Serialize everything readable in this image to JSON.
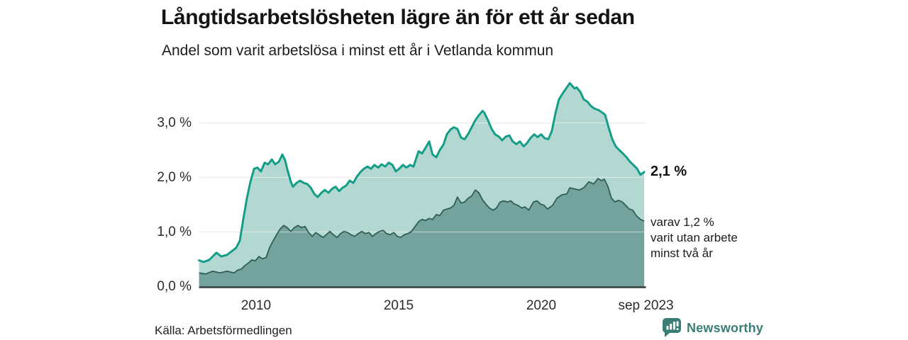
{
  "header": {
    "title": "Långtidsarbetslösheten lägre än för ett år sedan",
    "subtitle": "Andel som varit arbetslösa i minst ett år i Vetlanda kommun"
  },
  "chart_data": {
    "type": "area",
    "title": "Långtidsarbetslösheten lägre än för ett år sedan",
    "subtitle": "Andel som varit arbetslösa i minst ett år i Vetlanda kommun",
    "unit": "%",
    "grid": true,
    "legend_position": "end-of-line-annotations",
    "xaxis": {
      "range": [
        2008.0,
        2023.67
      ],
      "ticks": [
        {
          "label": "2010",
          "year": 2010
        },
        {
          "label": "2015",
          "year": 2015
        },
        {
          "label": "2020",
          "year": 2020
        },
        {
          "label": "sep 2023",
          "year": 2023.67
        }
      ]
    },
    "yaxis": {
      "range": [
        0,
        3.9
      ],
      "gridlines": [
        1,
        2,
        3
      ],
      "ticks": [
        {
          "label": "0,0 %",
          "value": 0
        },
        {
          "label": "1,0 %",
          "value": 1
        },
        {
          "label": "2,0 %",
          "value": 2
        },
        {
          "label": "3,0 %",
          "value": 3
        }
      ]
    },
    "annotations": {
      "end_label_light": "2,1 %",
      "dark_lines": [
        "varav 1,2 %",
        "varit utan arbete",
        "minst två år"
      ]
    },
    "series": [
      {
        "name": "Andel arbetslösa minst ett år",
        "end_value_label": "2,1 %",
        "line_color": "#149e88",
        "fill_color": "#b3d8d2",
        "points": [
          [
            2008.0,
            0.48
          ],
          [
            2008.16,
            0.45
          ],
          [
            2008.36,
            0.49
          ],
          [
            2008.61,
            0.62
          ],
          [
            2008.78,
            0.55
          ],
          [
            2008.98,
            0.58
          ],
          [
            2009.18,
            0.66
          ],
          [
            2009.3,
            0.71
          ],
          [
            2009.43,
            0.84
          ],
          [
            2009.55,
            1.23
          ],
          [
            2009.68,
            1.62
          ],
          [
            2009.8,
            1.92
          ],
          [
            2009.93,
            2.16
          ],
          [
            2010.05,
            2.18
          ],
          [
            2010.17,
            2.11
          ],
          [
            2010.3,
            2.27
          ],
          [
            2010.42,
            2.24
          ],
          [
            2010.55,
            2.33
          ],
          [
            2010.67,
            2.24
          ],
          [
            2010.8,
            2.29
          ],
          [
            2010.92,
            2.42
          ],
          [
            2011.02,
            2.31
          ],
          [
            2011.09,
            2.16
          ],
          [
            2011.22,
            1.92
          ],
          [
            2011.29,
            1.83
          ],
          [
            2011.42,
            1.9
          ],
          [
            2011.54,
            1.94
          ],
          [
            2011.67,
            1.9
          ],
          [
            2011.79,
            1.88
          ],
          [
            2011.92,
            1.81
          ],
          [
            2012.04,
            1.7
          ],
          [
            2012.16,
            1.64
          ],
          [
            2012.29,
            1.72
          ],
          [
            2012.41,
            1.77
          ],
          [
            2012.54,
            1.72
          ],
          [
            2012.66,
            1.79
          ],
          [
            2012.79,
            1.83
          ],
          [
            2012.91,
            1.75
          ],
          [
            2013.03,
            1.81
          ],
          [
            2013.16,
            1.85
          ],
          [
            2013.28,
            1.94
          ],
          [
            2013.41,
            1.9
          ],
          [
            2013.53,
            2.01
          ],
          [
            2013.66,
            2.1
          ],
          [
            2013.78,
            2.16
          ],
          [
            2013.91,
            2.2
          ],
          [
            2014.03,
            2.16
          ],
          [
            2014.15,
            2.23
          ],
          [
            2014.28,
            2.18
          ],
          [
            2014.4,
            2.24
          ],
          [
            2014.53,
            2.2
          ],
          [
            2014.65,
            2.27
          ],
          [
            2014.78,
            2.23
          ],
          [
            2014.9,
            2.11
          ],
          [
            2015.02,
            2.16
          ],
          [
            2015.15,
            2.23
          ],
          [
            2015.27,
            2.18
          ],
          [
            2015.4,
            2.23
          ],
          [
            2015.52,
            2.2
          ],
          [
            2015.7,
            2.48
          ],
          [
            2015.82,
            2.44
          ],
          [
            2015.95,
            2.55
          ],
          [
            2016.07,
            2.66
          ],
          [
            2016.19,
            2.42
          ],
          [
            2016.32,
            2.37
          ],
          [
            2016.44,
            2.5
          ],
          [
            2016.57,
            2.6
          ],
          [
            2016.69,
            2.79
          ],
          [
            2016.82,
            2.88
          ],
          [
            2016.94,
            2.92
          ],
          [
            2017.06,
            2.89
          ],
          [
            2017.19,
            2.73
          ],
          [
            2017.31,
            2.7
          ],
          [
            2017.44,
            2.8
          ],
          [
            2017.56,
            2.92
          ],
          [
            2017.69,
            3.05
          ],
          [
            2017.81,
            3.14
          ],
          [
            2017.94,
            3.22
          ],
          [
            2018.01,
            3.18
          ],
          [
            2018.13,
            3.05
          ],
          [
            2018.26,
            2.89
          ],
          [
            2018.38,
            2.79
          ],
          [
            2018.51,
            2.75
          ],
          [
            2018.63,
            2.68
          ],
          [
            2018.76,
            2.75
          ],
          [
            2018.88,
            2.77
          ],
          [
            2019.0,
            2.66
          ],
          [
            2019.13,
            2.61
          ],
          [
            2019.25,
            2.66
          ],
          [
            2019.38,
            2.57
          ],
          [
            2019.5,
            2.63
          ],
          [
            2019.62,
            2.72
          ],
          [
            2019.75,
            2.79
          ],
          [
            2019.87,
            2.74
          ],
          [
            2020.0,
            2.79
          ],
          [
            2020.12,
            2.72
          ],
          [
            2020.25,
            2.7
          ],
          [
            2020.37,
            2.85
          ],
          [
            2020.5,
            3.18
          ],
          [
            2020.62,
            3.43
          ],
          [
            2020.75,
            3.54
          ],
          [
            2020.87,
            3.63
          ],
          [
            2021.0,
            3.73
          ],
          [
            2021.1,
            3.67
          ],
          [
            2021.17,
            3.63
          ],
          [
            2021.24,
            3.65
          ],
          [
            2021.37,
            3.57
          ],
          [
            2021.49,
            3.43
          ],
          [
            2021.62,
            3.39
          ],
          [
            2021.74,
            3.31
          ],
          [
            2021.87,
            3.26
          ],
          [
            2021.99,
            3.24
          ],
          [
            2022.11,
            3.2
          ],
          [
            2022.24,
            3.15
          ],
          [
            2022.36,
            2.92
          ],
          [
            2022.49,
            2.7
          ],
          [
            2022.61,
            2.57
          ],
          [
            2022.74,
            2.5
          ],
          [
            2022.86,
            2.44
          ],
          [
            2022.99,
            2.37
          ],
          [
            2023.11,
            2.29
          ],
          [
            2023.23,
            2.23
          ],
          [
            2023.36,
            2.16
          ],
          [
            2023.48,
            2.05
          ],
          [
            2023.61,
            2.1
          ]
        ]
      },
      {
        "name": "varav utan arbete minst två år",
        "end_value_label": "1,2 %",
        "line_color": "#2f5e58",
        "fill_color": "#74a29c",
        "points": [
          [
            2008.0,
            0.25
          ],
          [
            2008.23,
            0.23
          ],
          [
            2008.48,
            0.28
          ],
          [
            2008.73,
            0.25
          ],
          [
            2008.98,
            0.28
          ],
          [
            2009.23,
            0.25
          ],
          [
            2009.35,
            0.3
          ],
          [
            2009.48,
            0.32
          ],
          [
            2009.6,
            0.38
          ],
          [
            2009.73,
            0.43
          ],
          [
            2009.85,
            0.49
          ],
          [
            2009.97,
            0.47
          ],
          [
            2010.1,
            0.55
          ],
          [
            2010.22,
            0.51
          ],
          [
            2010.35,
            0.53
          ],
          [
            2010.47,
            0.71
          ],
          [
            2010.6,
            0.84
          ],
          [
            2010.72,
            0.95
          ],
          [
            2010.85,
            1.06
          ],
          [
            2010.97,
            1.12
          ],
          [
            2011.09,
            1.08
          ],
          [
            2011.22,
            1.01
          ],
          [
            2011.34,
            1.08
          ],
          [
            2011.47,
            1.12
          ],
          [
            2011.59,
            1.08
          ],
          [
            2011.72,
            1.1
          ],
          [
            2011.84,
            0.99
          ],
          [
            2011.97,
            0.92
          ],
          [
            2012.09,
            0.99
          ],
          [
            2012.21,
            0.95
          ],
          [
            2012.34,
            0.9
          ],
          [
            2012.46,
            0.95
          ],
          [
            2012.59,
            1.01
          ],
          [
            2012.71,
            0.95
          ],
          [
            2012.84,
            0.9
          ],
          [
            2012.96,
            0.97
          ],
          [
            2013.08,
            1.01
          ],
          [
            2013.21,
            0.99
          ],
          [
            2013.33,
            0.95
          ],
          [
            2013.46,
            0.92
          ],
          [
            2013.58,
            0.97
          ],
          [
            2013.71,
            1.01
          ],
          [
            2013.83,
            0.97
          ],
          [
            2013.96,
            0.99
          ],
          [
            2014.08,
            0.92
          ],
          [
            2014.2,
            0.97
          ],
          [
            2014.33,
            1.01
          ],
          [
            2014.45,
            1.03
          ],
          [
            2014.58,
            0.97
          ],
          [
            2014.7,
            0.95
          ],
          [
            2014.83,
            0.99
          ],
          [
            2014.95,
            0.92
          ],
          [
            2015.07,
            0.9
          ],
          [
            2015.2,
            0.95
          ],
          [
            2015.32,
            0.97
          ],
          [
            2015.45,
            1.01
          ],
          [
            2015.7,
            1.19
          ],
          [
            2015.82,
            1.23
          ],
          [
            2015.95,
            1.21
          ],
          [
            2016.07,
            1.25
          ],
          [
            2016.19,
            1.23
          ],
          [
            2016.32,
            1.32
          ],
          [
            2016.44,
            1.3
          ],
          [
            2016.57,
            1.4
          ],
          [
            2016.69,
            1.42
          ],
          [
            2016.82,
            1.44
          ],
          [
            2016.94,
            1.49
          ],
          [
            2017.06,
            1.64
          ],
          [
            2017.19,
            1.53
          ],
          [
            2017.31,
            1.55
          ],
          [
            2017.44,
            1.62
          ],
          [
            2017.56,
            1.66
          ],
          [
            2017.69,
            1.77
          ],
          [
            2017.81,
            1.72
          ],
          [
            2017.94,
            1.59
          ],
          [
            2018.06,
            1.51
          ],
          [
            2018.18,
            1.44
          ],
          [
            2018.31,
            1.4
          ],
          [
            2018.43,
            1.44
          ],
          [
            2018.56,
            1.55
          ],
          [
            2018.68,
            1.57
          ],
          [
            2018.81,
            1.55
          ],
          [
            2018.93,
            1.57
          ],
          [
            2019.06,
            1.51
          ],
          [
            2019.18,
            1.49
          ],
          [
            2019.31,
            1.44
          ],
          [
            2019.43,
            1.46
          ],
          [
            2019.56,
            1.4
          ],
          [
            2019.73,
            1.55
          ],
          [
            2019.85,
            1.57
          ],
          [
            2019.98,
            1.51
          ],
          [
            2020.1,
            1.49
          ],
          [
            2020.22,
            1.42
          ],
          [
            2020.4,
            1.49
          ],
          [
            2020.55,
            1.62
          ],
          [
            2020.72,
            1.68
          ],
          [
            2020.9,
            1.7
          ],
          [
            2021.0,
            1.81
          ],
          [
            2021.17,
            1.79
          ],
          [
            2021.34,
            1.77
          ],
          [
            2021.49,
            1.81
          ],
          [
            2021.67,
            1.92
          ],
          [
            2021.84,
            1.88
          ],
          [
            2021.99,
            1.98
          ],
          [
            2022.11,
            1.94
          ],
          [
            2022.21,
            1.97
          ],
          [
            2022.34,
            1.83
          ],
          [
            2022.46,
            1.62
          ],
          [
            2022.59,
            1.55
          ],
          [
            2022.71,
            1.58
          ],
          [
            2022.84,
            1.55
          ],
          [
            2022.96,
            1.49
          ],
          [
            2023.09,
            1.42
          ],
          [
            2023.21,
            1.4
          ],
          [
            2023.33,
            1.3
          ],
          [
            2023.48,
            1.23
          ],
          [
            2023.61,
            1.2
          ]
        ]
      }
    ]
  },
  "colors": {
    "grid": "#dedede",
    "grid_over_fill": "rgba(255,255,255,0.45)",
    "baseline": "#343d3d",
    "brand_teal": "#3a7d76"
  },
  "footer": {
    "source": "Källa: Arbetsförmedlingen",
    "brand": "Newsworthy"
  }
}
